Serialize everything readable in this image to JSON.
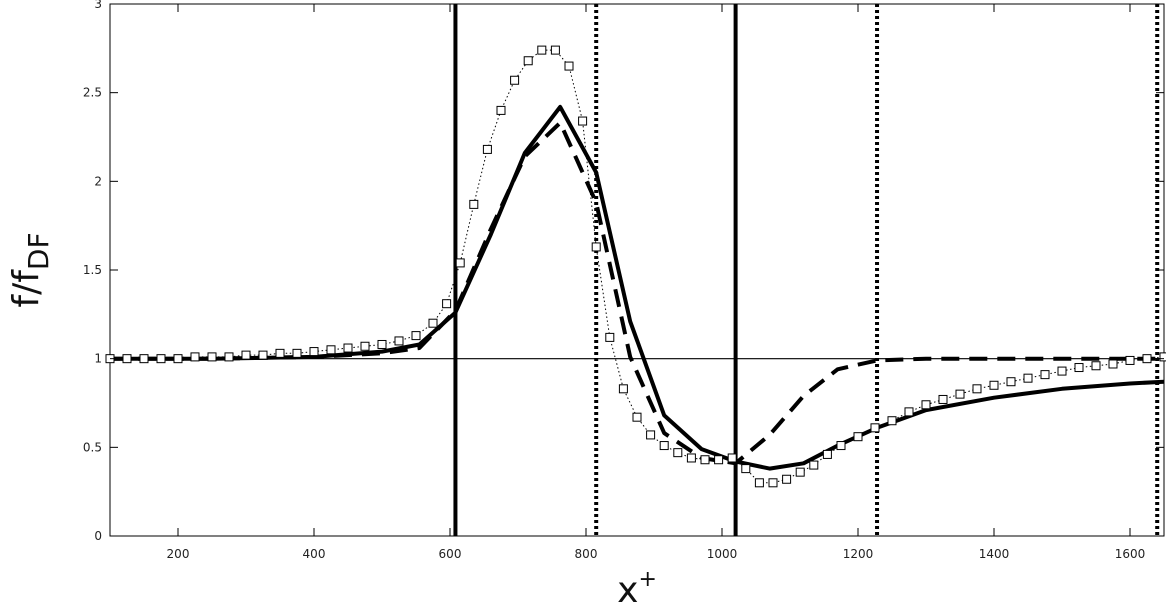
{
  "chart_data": {
    "type": "line",
    "title": "",
    "xlabel": {
      "base": "x",
      "sup": "+"
    },
    "ylabel": {
      "base": "f/f",
      "sub": "DF"
    },
    "xlim": [
      100,
      1650
    ],
    "ylim": [
      0,
      3
    ],
    "xticks": [
      200,
      400,
      600,
      800,
      1000,
      1200,
      1400,
      1600
    ],
    "yticks": [
      0,
      0.5,
      1,
      1.5,
      2,
      2.5,
      3
    ],
    "ytick_labels": [
      "0",
      "0.5",
      "1",
      "1.5",
      "2",
      "2.5",
      "3"
    ],
    "grid": false,
    "legend": "none",
    "reference_lines": [
      {
        "orientation": "horizontal",
        "value": 1,
        "style": "thin-solid"
      },
      {
        "orientation": "vertical",
        "value": 608,
        "style": "thick-solid"
      },
      {
        "orientation": "vertical",
        "value": 1020,
        "style": "thick-solid"
      },
      {
        "orientation": "vertical",
        "value": 815,
        "style": "thick-dotted"
      },
      {
        "orientation": "vertical",
        "value": 1228,
        "style": "thick-dotted"
      },
      {
        "orientation": "vertical",
        "value": 1640,
        "style": "thick-dotted"
      }
    ],
    "series": [
      {
        "style": "solid-thick",
        "x": [
          100,
          250,
          400,
          500,
          555,
          608,
          660,
          710,
          762,
          815,
          865,
          915,
          970,
          1020,
          1070,
          1120,
          1170,
          1228,
          1300,
          1400,
          1500,
          1600,
          1650
        ],
        "y": [
          1.0,
          1.0,
          1.01,
          1.04,
          1.08,
          1.26,
          1.7,
          2.16,
          2.42,
          2.05,
          1.21,
          0.68,
          0.49,
          0.42,
          0.38,
          0.41,
          0.51,
          0.61,
          0.71,
          0.78,
          0.83,
          0.86,
          0.87
        ]
      },
      {
        "style": "dashed-thick",
        "x": [
          100,
          250,
          400,
          500,
          555,
          608,
          660,
          710,
          762,
          815,
          865,
          915,
          970,
          1020,
          1070,
          1120,
          1170,
          1228,
          1300,
          1400,
          1500,
          1600,
          1650
        ],
        "y": [
          1.0,
          1.0,
          1.01,
          1.03,
          1.06,
          1.27,
          1.73,
          2.14,
          2.33,
          1.88,
          1.01,
          0.58,
          0.44,
          0.41,
          0.57,
          0.79,
          0.94,
          0.99,
          1.0,
          1.0,
          1.0,
          1.0,
          1.0
        ]
      },
      {
        "style": "dotted-square-markers",
        "x": [
          100,
          125,
          150,
          175,
          200,
          225,
          250,
          275,
          300,
          325,
          350,
          375,
          400,
          425,
          450,
          475,
          500,
          525,
          550,
          575,
          595,
          615,
          635,
          655,
          675,
          695,
          715,
          735,
          755,
          775,
          795,
          815,
          835,
          855,
          875,
          895,
          915,
          935,
          955,
          975,
          995,
          1015,
          1035,
          1055,
          1075,
          1095,
          1115,
          1135,
          1155,
          1175,
          1200,
          1225,
          1250,
          1275,
          1300,
          1325,
          1350,
          1375,
          1400,
          1425,
          1450,
          1475,
          1500,
          1525,
          1550,
          1575,
          1600,
          1625,
          1650
        ],
        "y": [
          1.0,
          1.0,
          1.0,
          1.0,
          1.0,
          1.01,
          1.01,
          1.01,
          1.02,
          1.02,
          1.03,
          1.03,
          1.04,
          1.05,
          1.06,
          1.07,
          1.08,
          1.1,
          1.13,
          1.2,
          1.31,
          1.54,
          1.87,
          2.18,
          2.4,
          2.57,
          2.68,
          2.74,
          2.74,
          2.65,
          2.34,
          1.63,
          1.12,
          0.83,
          0.67,
          0.57,
          0.51,
          0.47,
          0.44,
          0.43,
          0.43,
          0.44,
          0.38,
          0.3,
          0.3,
          0.32,
          0.36,
          0.4,
          0.46,
          0.51,
          0.56,
          0.61,
          0.65,
          0.7,
          0.74,
          0.77,
          0.8,
          0.83,
          0.85,
          0.87,
          0.89,
          0.91,
          0.93,
          0.95,
          0.96,
          0.97,
          0.99,
          1.0,
          1.01
        ]
      }
    ]
  }
}
